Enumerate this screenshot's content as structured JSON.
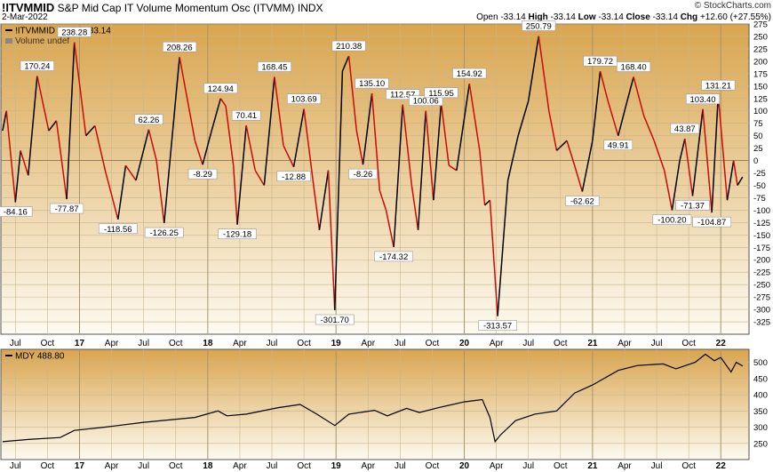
{
  "header": {
    "symbol": "!ITVMMID",
    "description": "S&P Mid Cap IT Volume Momentum Osc (ITVMM)",
    "exchange": "INDX",
    "date": "2-Mar-2022",
    "copyright": "© StockCharts.com",
    "ohlc": [
      {
        "label": "Open",
        "value": "-33.14"
      },
      {
        "label": "High",
        "value": "-33.14"
      },
      {
        "label": "Low",
        "value": "-33.14"
      },
      {
        "label": "Close",
        "value": "-33.14"
      },
      {
        "label": "Chg",
        "value": "+12.60 (+27.55%)"
      }
    ]
  },
  "colors": {
    "up": "#000000",
    "down": "#cc0a0a",
    "bg_top": "#d9a54e",
    "bg_bottom": "#fdfaf0"
  },
  "chart_data": [
    {
      "type": "line",
      "title": "!ITVMMID (Daily) -33.14",
      "legend2": "Volume undef",
      "ylim": [
        -350,
        275
      ],
      "yticks": [
        275,
        250,
        225,
        200,
        175,
        150,
        125,
        100,
        75,
        50,
        25,
        0,
        -25,
        -50,
        -75,
        -100,
        -125,
        -150,
        -175,
        -200,
        -225,
        -250,
        -275,
        -300,
        -325
      ],
      "x_labels": [
        "Jul",
        "Oct",
        "17",
        "Apr",
        "Jul",
        "Oct",
        "18",
        "Apr",
        "Jul",
        "Oct",
        "19",
        "Apr",
        "Jul",
        "Oct",
        "20",
        "Apr",
        "Jul",
        "Oct",
        "21",
        "Apr",
        "Jul",
        "Oct",
        "22"
      ],
      "annotations": [
        "-84.16",
        "170.24",
        "238.28",
        "-77.87",
        "-118.56",
        "62.26",
        "-126.25",
        "208.26",
        "-8.29",
        "124.94",
        "70.41",
        "-129.18",
        "168.45",
        "103.69",
        "-12.88",
        "-301.70",
        "210.38",
        "-8.26",
        "135.10",
        "112.57",
        "-174.32",
        "100.06",
        "115.95",
        "154.92",
        "-313.57",
        "250.79",
        "-62.62",
        "179.72",
        "49.91",
        "168.40",
        "-100.20",
        "43.87",
        "-71.37",
        "103.40",
        "-104.87",
        "131.21"
      ],
      "points": [
        {
          "t": 2016.4,
          "v": 60
        },
        {
          "t": 2016.43,
          "v": 100
        },
        {
          "t": 2016.5,
          "v": -84.16
        },
        {
          "t": 2016.54,
          "v": 20
        },
        {
          "t": 2016.6,
          "v": -30
        },
        {
          "t": 2016.67,
          "v": 170.24
        },
        {
          "t": 2016.76,
          "v": 60
        },
        {
          "t": 2016.82,
          "v": 80
        },
        {
          "t": 2016.9,
          "v": -77.87
        },
        {
          "t": 2016.96,
          "v": 238.28
        },
        {
          "t": 2017.05,
          "v": 50
        },
        {
          "t": 2017.12,
          "v": 70
        },
        {
          "t": 2017.2,
          "v": -20
        },
        {
          "t": 2017.3,
          "v": -118.56
        },
        {
          "t": 2017.36,
          "v": -10
        },
        {
          "t": 2017.44,
          "v": -40
        },
        {
          "t": 2017.54,
          "v": 62.26
        },
        {
          "t": 2017.6,
          "v": 0
        },
        {
          "t": 2017.66,
          "v": -126.25
        },
        {
          "t": 2017.78,
          "v": 208.26
        },
        {
          "t": 2017.9,
          "v": 40
        },
        {
          "t": 2017.96,
          "v": -8.29
        },
        {
          "t": 2018.03,
          "v": 60
        },
        {
          "t": 2018.1,
          "v": 124.94
        },
        {
          "t": 2018.14,
          "v": 110
        },
        {
          "t": 2018.2,
          "v": -10
        },
        {
          "t": 2018.23,
          "v": -129.18
        },
        {
          "t": 2018.3,
          "v": 70.41
        },
        {
          "t": 2018.37,
          "v": -20
        },
        {
          "t": 2018.44,
          "v": -50
        },
        {
          "t": 2018.52,
          "v": 168.45
        },
        {
          "t": 2018.59,
          "v": 30
        },
        {
          "t": 2018.67,
          "v": -12.88
        },
        {
          "t": 2018.75,
          "v": 103.69
        },
        {
          "t": 2018.82,
          "v": -40
        },
        {
          "t": 2018.87,
          "v": -140
        },
        {
          "t": 2018.94,
          "v": -20
        },
        {
          "t": 2018.99,
          "v": -301.7
        },
        {
          "t": 2019.05,
          "v": 180
        },
        {
          "t": 2019.1,
          "v": 210.38
        },
        {
          "t": 2019.16,
          "v": 60
        },
        {
          "t": 2019.21,
          "v": -8.26
        },
        {
          "t": 2019.28,
          "v": 135.1
        },
        {
          "t": 2019.34,
          "v": -60
        },
        {
          "t": 2019.39,
          "v": -100
        },
        {
          "t": 2019.45,
          "v": -174.32
        },
        {
          "t": 2019.52,
          "v": 112.57
        },
        {
          "t": 2019.59,
          "v": -50
        },
        {
          "t": 2019.64,
          "v": -140
        },
        {
          "t": 2019.7,
          "v": 100.06
        },
        {
          "t": 2019.76,
          "v": -80
        },
        {
          "t": 2019.82,
          "v": 115.95
        },
        {
          "t": 2019.88,
          "v": -10
        },
        {
          "t": 2019.94,
          "v": -20
        },
        {
          "t": 2020.04,
          "v": 154.92
        },
        {
          "t": 2020.12,
          "v": 20
        },
        {
          "t": 2020.16,
          "v": -90
        },
        {
          "t": 2020.2,
          "v": -80
        },
        {
          "t": 2020.26,
          "v": -313.57
        },
        {
          "t": 2020.34,
          "v": -40
        },
        {
          "t": 2020.42,
          "v": 50
        },
        {
          "t": 2020.5,
          "v": 120
        },
        {
          "t": 2020.58,
          "v": 250.79
        },
        {
          "t": 2020.66,
          "v": 100
        },
        {
          "t": 2020.72,
          "v": 20
        },
        {
          "t": 2020.8,
          "v": 40
        },
        {
          "t": 2020.86,
          "v": -10
        },
        {
          "t": 2020.92,
          "v": -62.62
        },
        {
          "t": 2021.0,
          "v": 40
        },
        {
          "t": 2021.06,
          "v": 179.72
        },
        {
          "t": 2021.12,
          "v": 120
        },
        {
          "t": 2021.2,
          "v": 49.91
        },
        {
          "t": 2021.26,
          "v": 110
        },
        {
          "t": 2021.32,
          "v": 168.4
        },
        {
          "t": 2021.4,
          "v": 90
        },
        {
          "t": 2021.48,
          "v": 40
        },
        {
          "t": 2021.56,
          "v": -20
        },
        {
          "t": 2021.62,
          "v": -100.2
        },
        {
          "t": 2021.68,
          "v": 0
        },
        {
          "t": 2021.72,
          "v": 43.87
        },
        {
          "t": 2021.78,
          "v": -71.37
        },
        {
          "t": 2021.86,
          "v": 103.4
        },
        {
          "t": 2021.93,
          "v": -104.87
        },
        {
          "t": 2021.98,
          "v": 131.21
        },
        {
          "t": 2022.05,
          "v": -80
        },
        {
          "t": 2022.1,
          "v": 0
        },
        {
          "t": 2022.13,
          "v": -50
        },
        {
          "t": 2022.17,
          "v": -33.14
        }
      ]
    },
    {
      "type": "line",
      "title": "MDY 488.80",
      "ylim": [
        200,
        540
      ],
      "yticks": [
        500,
        450,
        400,
        350,
        300,
        250
      ],
      "x_labels": [
        "Jul",
        "Oct",
        "17",
        "Apr",
        "Jul",
        "Oct",
        "18",
        "Apr",
        "Jul",
        "Oct",
        "19",
        "Apr",
        "Jul",
        "Oct",
        "20",
        "Apr",
        "Jul",
        "Oct",
        "21",
        "Apr",
        "Jul",
        "Oct",
        "22"
      ],
      "points": [
        {
          "t": 2016.4,
          "v": 255
        },
        {
          "t": 2016.6,
          "v": 262
        },
        {
          "t": 2016.85,
          "v": 268
        },
        {
          "t": 2016.96,
          "v": 290
        },
        {
          "t": 2017.2,
          "v": 300
        },
        {
          "t": 2017.5,
          "v": 315
        },
        {
          "t": 2017.9,
          "v": 330
        },
        {
          "t": 2018.08,
          "v": 350
        },
        {
          "t": 2018.15,
          "v": 335
        },
        {
          "t": 2018.3,
          "v": 340
        },
        {
          "t": 2018.55,
          "v": 360
        },
        {
          "t": 2018.72,
          "v": 370
        },
        {
          "t": 2018.85,
          "v": 340
        },
        {
          "t": 2018.99,
          "v": 305
        },
        {
          "t": 2019.1,
          "v": 340
        },
        {
          "t": 2019.3,
          "v": 352
        },
        {
          "t": 2019.4,
          "v": 335
        },
        {
          "t": 2019.55,
          "v": 358
        },
        {
          "t": 2019.65,
          "v": 345
        },
        {
          "t": 2019.8,
          "v": 360
        },
        {
          "t": 2020.0,
          "v": 378
        },
        {
          "t": 2020.14,
          "v": 385
        },
        {
          "t": 2020.2,
          "v": 330
        },
        {
          "t": 2020.24,
          "v": 255
        },
        {
          "t": 2020.28,
          "v": 275
        },
        {
          "t": 2020.4,
          "v": 320
        },
        {
          "t": 2020.55,
          "v": 340
        },
        {
          "t": 2020.72,
          "v": 350
        },
        {
          "t": 2020.86,
          "v": 405
        },
        {
          "t": 2021.0,
          "v": 430
        },
        {
          "t": 2021.2,
          "v": 475
        },
        {
          "t": 2021.35,
          "v": 490
        },
        {
          "t": 2021.55,
          "v": 495
        },
        {
          "t": 2021.65,
          "v": 480
        },
        {
          "t": 2021.8,
          "v": 500
        },
        {
          "t": 2021.88,
          "v": 525
        },
        {
          "t": 2021.95,
          "v": 505
        },
        {
          "t": 2022.0,
          "v": 515
        },
        {
          "t": 2022.08,
          "v": 470
        },
        {
          "t": 2022.12,
          "v": 500
        },
        {
          "t": 2022.17,
          "v": 488.8
        }
      ]
    }
  ]
}
